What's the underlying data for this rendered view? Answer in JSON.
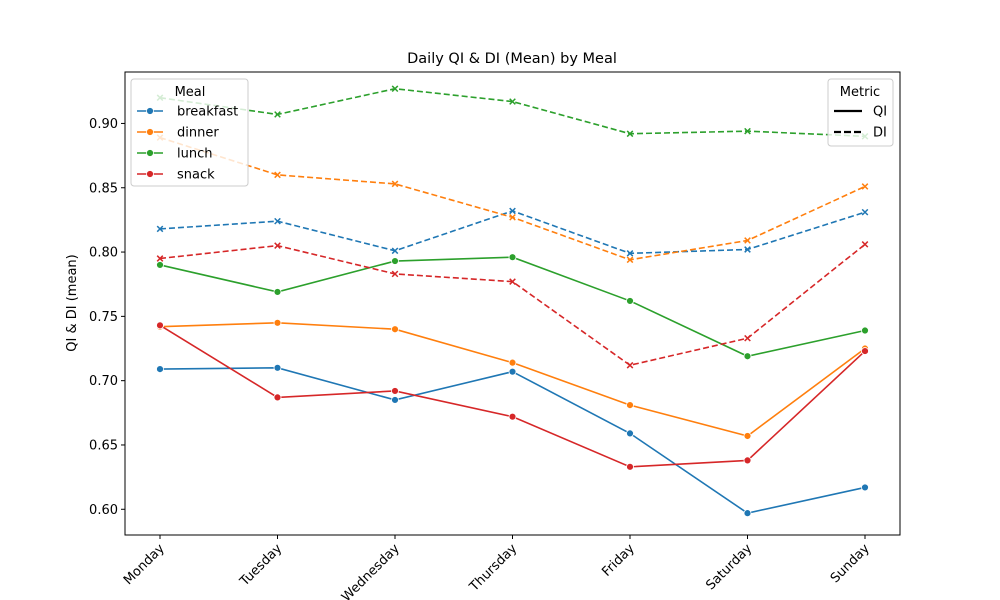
{
  "chart_data": {
    "type": "line",
    "title": "Daily QI & DI (Mean) by Meal",
    "xlabel": "",
    "ylabel": "QI & DI (mean)",
    "categories": [
      "Monday",
      "Tuesday",
      "Wednesday",
      "Thursday",
      "Friday",
      "Saturday",
      "Sunday"
    ],
    "ylim": [
      0.58,
      0.94
    ],
    "yticks": [
      "0.60",
      "0.65",
      "0.70",
      "0.75",
      "0.80",
      "0.85",
      "0.90"
    ],
    "grid": false,
    "legend_meal": {
      "title": "Meal",
      "placement": "top-left",
      "entries": [
        {
          "label": "breakfast",
          "color": "#1f77b4"
        },
        {
          "label": "dinner",
          "color": "#ff7f0e"
        },
        {
          "label": "lunch",
          "color": "#2ca02c"
        },
        {
          "label": "snack",
          "color": "#d62728"
        }
      ]
    },
    "legend_metric": {
      "title": "Metric",
      "placement": "top-right",
      "entries": [
        {
          "label": "QI",
          "style": "solid"
        },
        {
          "label": "DI",
          "style": "dashed"
        }
      ]
    },
    "series": [
      {
        "name": "breakfast",
        "metric": "QI",
        "color": "#1f77b4",
        "style": "solid",
        "marker": "circle",
        "values": [
          0.709,
          0.71,
          0.685,
          0.707,
          0.659,
          0.597,
          0.617
        ]
      },
      {
        "name": "dinner",
        "metric": "QI",
        "color": "#ff7f0e",
        "style": "solid",
        "marker": "circle",
        "values": [
          0.742,
          0.745,
          0.74,
          0.714,
          0.681,
          0.657,
          0.725
        ]
      },
      {
        "name": "lunch",
        "metric": "QI",
        "color": "#2ca02c",
        "style": "solid",
        "marker": "circle",
        "values": [
          0.79,
          0.769,
          0.793,
          0.796,
          0.762,
          0.719,
          0.739
        ]
      },
      {
        "name": "snack",
        "metric": "QI",
        "color": "#d62728",
        "style": "solid",
        "marker": "circle",
        "values": [
          0.743,
          0.687,
          0.692,
          0.672,
          0.633,
          0.638,
          0.723
        ]
      },
      {
        "name": "breakfast",
        "metric": "DI",
        "color": "#1f77b4",
        "style": "dashed",
        "marker": "x",
        "values": [
          0.818,
          0.824,
          0.801,
          0.832,
          0.799,
          0.802,
          0.831
        ]
      },
      {
        "name": "dinner",
        "metric": "DI",
        "color": "#ff7f0e",
        "style": "dashed",
        "marker": "x",
        "values": [
          0.889,
          0.86,
          0.853,
          0.827,
          0.794,
          0.809,
          0.851
        ]
      },
      {
        "name": "lunch",
        "metric": "DI",
        "color": "#2ca02c",
        "style": "dashed",
        "marker": "x",
        "values": [
          0.92,
          0.907,
          0.927,
          0.917,
          0.892,
          0.894,
          0.89
        ]
      },
      {
        "name": "snack",
        "metric": "DI",
        "color": "#d62728",
        "style": "dashed",
        "marker": "x",
        "values": [
          0.795,
          0.805,
          0.783,
          0.777,
          0.712,
          0.733,
          0.806
        ]
      }
    ]
  }
}
